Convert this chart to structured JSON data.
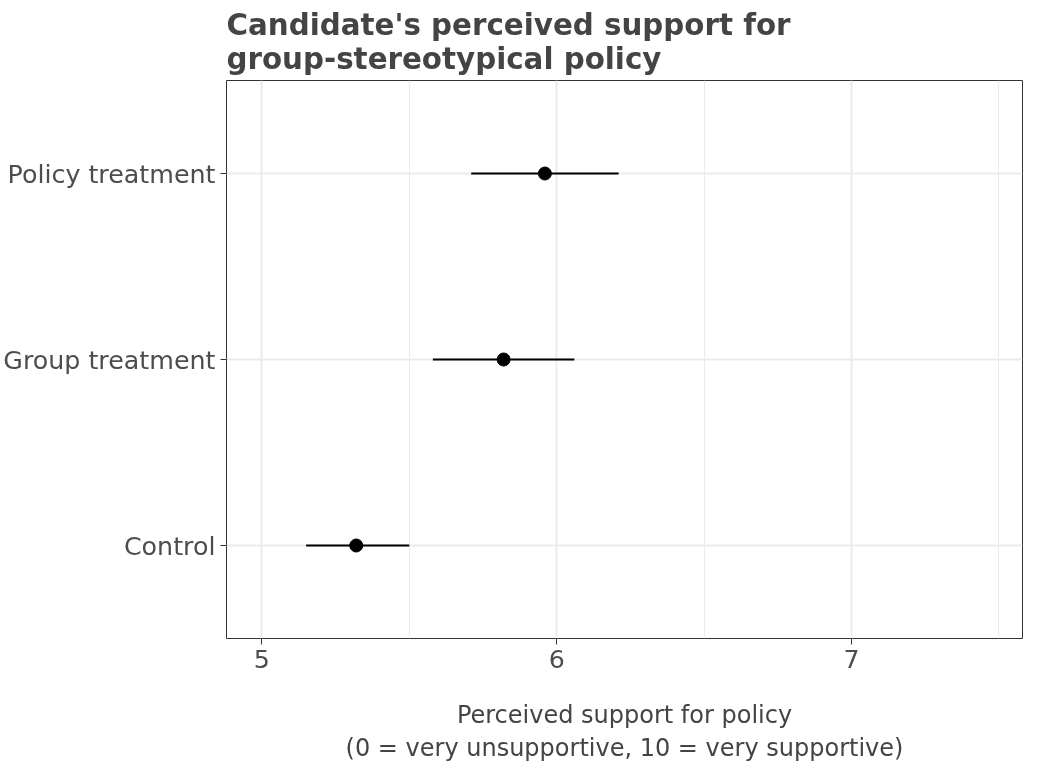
{
  "chart_data": {
    "type": "scatter",
    "orientation": "horizontal",
    "title": "Candidate's perceived support for\ngroup-stereotypical policy",
    "xlabel": "Perceived support for policy\n(0 = very unsupportive, 10 = very supportive)",
    "categories": [
      "Policy treatment",
      "Group treatment",
      "Control"
    ],
    "values": [
      5.96,
      5.82,
      5.32
    ],
    "errors": [
      [
        5.71,
        6.21
      ],
      [
        5.58,
        6.06
      ],
      [
        5.15,
        5.5
      ]
    ],
    "color": "#000000",
    "marker": "circle",
    "grid": true,
    "xlim": [
      4.88,
      7.58
    ],
    "xticks": [
      5,
      6,
      7
    ]
  }
}
